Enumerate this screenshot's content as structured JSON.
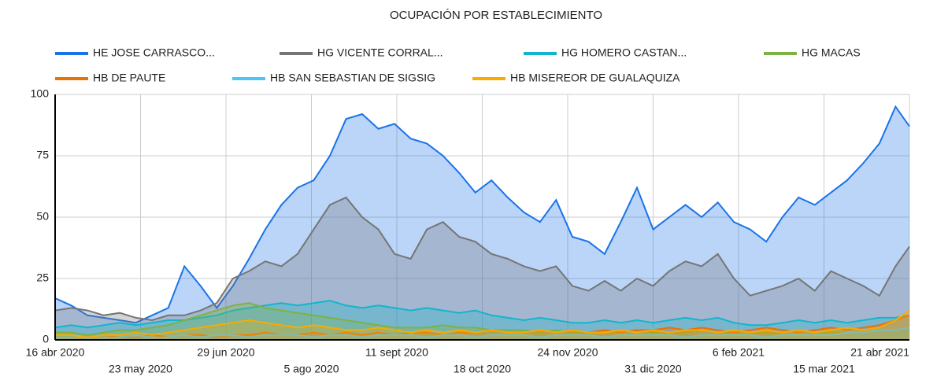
{
  "chart_data": {
    "type": "area",
    "title": "OCUPACIÓN POR ESTABLECIMIENTO",
    "x": [
      "2020-04-16",
      "2020-04-23",
      "2020-04-30",
      "2020-05-07",
      "2020-05-14",
      "2020-05-21",
      "2020-05-28",
      "2020-06-04",
      "2020-06-11",
      "2020-06-18",
      "2020-06-25",
      "2020-07-02",
      "2020-07-09",
      "2020-07-16",
      "2020-07-23",
      "2020-07-30",
      "2020-08-06",
      "2020-08-13",
      "2020-08-20",
      "2020-08-27",
      "2020-09-03",
      "2020-09-10",
      "2020-09-17",
      "2020-09-24",
      "2020-10-01",
      "2020-10-08",
      "2020-10-15",
      "2020-10-22",
      "2020-10-29",
      "2020-11-05",
      "2020-11-12",
      "2020-11-19",
      "2020-11-26",
      "2020-12-03",
      "2020-12-10",
      "2020-12-17",
      "2020-12-24",
      "2020-12-31",
      "2021-01-07",
      "2021-01-14",
      "2021-01-21",
      "2021-01-28",
      "2021-02-04",
      "2021-02-11",
      "2021-02-18",
      "2021-02-25",
      "2021-03-04",
      "2021-03-11",
      "2021-03-18",
      "2021-03-25",
      "2021-04-01",
      "2021-04-08",
      "2021-04-15",
      "2021-04-21"
    ],
    "series": [
      {
        "name": "HE JOSE CARRASCO...",
        "color": "#1a73e8",
        "values": [
          17,
          14,
          10,
          9,
          8,
          7,
          10,
          13,
          30,
          22,
          13,
          22,
          33,
          45,
          55,
          62,
          65,
          75,
          90,
          92,
          86,
          88,
          82,
          80,
          75,
          68,
          60,
          65,
          58,
          52,
          48,
          57,
          42,
          40,
          35,
          48,
          62,
          45,
          50,
          55,
          50,
          56,
          48,
          45,
          40,
          50,
          58,
          55,
          60,
          65,
          72,
          80,
          95,
          87
        ]
      },
      {
        "name": "HG VICENTE CORRAL...",
        "color": "#757575",
        "values": [
          12,
          13,
          12,
          10,
          11,
          9,
          8,
          10,
          10,
          12,
          15,
          25,
          28,
          32,
          30,
          35,
          45,
          55,
          58,
          50,
          45,
          35,
          33,
          45,
          48,
          42,
          40,
          35,
          33,
          30,
          28,
          30,
          22,
          20,
          24,
          20,
          25,
          22,
          28,
          32,
          30,
          35,
          25,
          18,
          20,
          22,
          25,
          20,
          28,
          25,
          22,
          18,
          30,
          38
        ]
      },
      {
        "name": "HG HOMERO CASTAN...",
        "color": "#12b5cb",
        "values": [
          5,
          6,
          5,
          6,
          7,
          6,
          7,
          8,
          8,
          9,
          10,
          12,
          13,
          14,
          15,
          14,
          15,
          16,
          14,
          13,
          14,
          13,
          12,
          13,
          12,
          11,
          12,
          10,
          9,
          8,
          9,
          8,
          7,
          7,
          8,
          7,
          8,
          7,
          8,
          9,
          8,
          9,
          7,
          6,
          6,
          7,
          8,
          7,
          8,
          7,
          8,
          9,
          9,
          10
        ]
      },
      {
        "name": "HG MACAS",
        "color": "#7cb342",
        "values": [
          3,
          3,
          2,
          3,
          4,
          4,
          5,
          6,
          8,
          10,
          12,
          14,
          15,
          13,
          12,
          11,
          10,
          9,
          8,
          7,
          6,
          5,
          5,
          5,
          6,
          5,
          5,
          4,
          4,
          4,
          3,
          4,
          3,
          3,
          3,
          3,
          4,
          3,
          3,
          3,
          4,
          3,
          3,
          3,
          3,
          3,
          4,
          3,
          3,
          3,
          3,
          4,
          4,
          5
        ]
      },
      {
        "name": "HB DE PAUTE",
        "color": "#e8710a",
        "values": [
          1,
          1,
          1,
          2,
          1,
          1,
          2,
          1,
          2,
          2,
          1,
          2,
          2,
          3,
          2,
          2,
          3,
          2,
          3,
          2,
          3,
          2,
          3,
          3,
          2,
          3,
          3,
          4,
          3,
          3,
          4,
          3,
          4,
          3,
          4,
          3,
          4,
          4,
          5,
          4,
          5,
          4,
          3,
          4,
          5,
          4,
          3,
          4,
          5,
          4,
          5,
          6,
          8,
          10
        ]
      },
      {
        "name": "HB SAN SEBASTIAN DE SIGSIG",
        "color": "#4fc3f7",
        "values": [
          1,
          1,
          1,
          1,
          1,
          2,
          1,
          1,
          2,
          1,
          2,
          2,
          1,
          2,
          2,
          2,
          1,
          2,
          2,
          1,
          2,
          2,
          2,
          1,
          2,
          2,
          1,
          2,
          2,
          2,
          1,
          2,
          2,
          2,
          1,
          2,
          2,
          2,
          2,
          1,
          2,
          2,
          2,
          2,
          1,
          2,
          2,
          2,
          2,
          3,
          3,
          4,
          4,
          5
        ]
      },
      {
        "name": "HB MISEREOR DE GUALAQUIZA",
        "color": "#f9ab00",
        "values": [
          2,
          2,
          1,
          2,
          2,
          3,
          2,
          3,
          4,
          5,
          6,
          7,
          8,
          7,
          6,
          5,
          6,
          5,
          4,
          4,
          5,
          4,
          3,
          4,
          3,
          4,
          3,
          4,
          3,
          3,
          4,
          3,
          4,
          3,
          3,
          4,
          3,
          4,
          3,
          4,
          4,
          3,
          4,
          3,
          4,
          3,
          4,
          3,
          4,
          5,
          4,
          5,
          8,
          12
        ]
      }
    ],
    "xlim": [
      "2020-04-16",
      "2021-04-21"
    ],
    "xticks": [
      {
        "value": "2020-04-16",
        "label": "16 abr 2020"
      },
      {
        "value": "2020-05-23",
        "label": "23 may 2020"
      },
      {
        "value": "2020-06-29",
        "label": "29 jun 2020"
      },
      {
        "value": "2020-08-05",
        "label": "5 ago 2020"
      },
      {
        "value": "2020-09-11",
        "label": "11 sept 2020"
      },
      {
        "value": "2020-10-18",
        "label": "18 oct 2020"
      },
      {
        "value": "2020-11-24",
        "label": "24 nov 2020"
      },
      {
        "value": "2020-12-31",
        "label": "31 dic 2020"
      },
      {
        "value": "2021-02-06",
        "label": "6 feb 2021"
      },
      {
        "value": "2021-03-15",
        "label": "15 mar 2021"
      },
      {
        "value": "2021-04-21",
        "label": "21 abr 2021"
      }
    ],
    "ylim": [
      0,
      100
    ],
    "yticks": [
      0,
      25,
      50,
      75,
      100
    ],
    "grid": true
  }
}
